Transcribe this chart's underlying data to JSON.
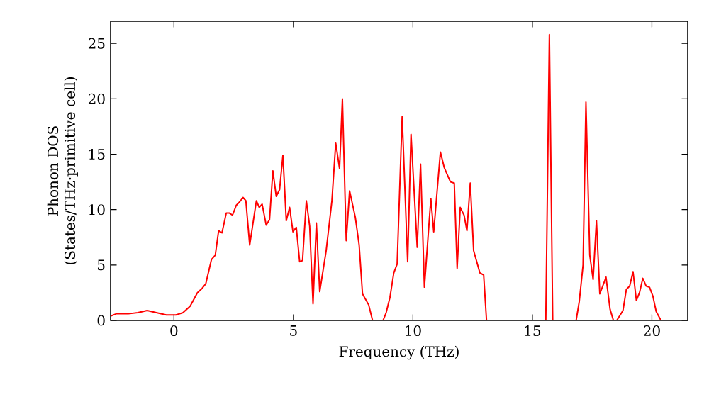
{
  "chart_data": {
    "type": "line",
    "xlabel": "Frequency (THz)",
    "ylabel": "Phonon DOS (States/THz·primitive cell)",
    "xlim": [
      -2.65,
      21.5
    ],
    "ylim": [
      0,
      27
    ],
    "xticks": [
      0,
      5,
      10,
      15,
      20
    ],
    "yticks": [
      0,
      5,
      10,
      15,
      20,
      25
    ],
    "marker": "none",
    "line_style": "solid",
    "series": [
      {
        "color": "#ff0000",
        "x": [
          -2.65,
          -2.41,
          -1.91,
          -1.51,
          -1.12,
          -0.72,
          -0.32,
          0.08,
          0.38,
          0.68,
          0.98,
          1.18,
          1.33,
          1.57,
          1.73,
          1.87,
          2.01,
          2.19,
          2.31,
          2.45,
          2.61,
          2.75,
          2.89,
          3.01,
          3.17,
          3.45,
          3.57,
          3.69,
          3.86,
          4.0,
          4.14,
          4.28,
          4.42,
          4.56,
          4.7,
          4.84,
          4.98,
          5.12,
          5.26,
          5.38,
          5.54,
          5.68,
          5.82,
          5.96,
          6.1,
          6.37,
          6.61,
          6.77,
          6.93,
          7.05,
          7.21,
          7.35,
          7.59,
          7.75,
          7.89,
          8.15,
          8.31,
          8.75,
          8.88,
          9.04,
          9.2,
          9.34,
          9.55,
          9.78,
          9.92,
          10.18,
          10.32,
          10.48,
          10.75,
          10.87,
          11.15,
          11.31,
          11.57,
          11.73,
          11.85,
          11.98,
          12.14,
          12.26,
          12.4,
          12.54,
          12.8,
          12.96,
          13.08,
          15.56,
          15.71,
          15.85,
          16.83,
          16.96,
          17.12,
          17.24,
          17.4,
          17.54,
          17.68,
          17.82,
          18.08,
          18.25,
          18.39,
          18.53,
          18.79,
          18.93,
          19.07,
          19.21,
          19.35,
          19.48,
          19.62,
          19.76,
          19.9,
          20.04,
          20.18,
          20.38,
          21.47
        ],
        "values": [
          0.4,
          0.6,
          0.6,
          0.7,
          0.9,
          0.7,
          0.5,
          0.5,
          0.7,
          1.3,
          2.5,
          2.9,
          3.3,
          5.5,
          5.9,
          8.1,
          7.9,
          9.7,
          9.7,
          9.5,
          10.4,
          10.7,
          11.1,
          10.8,
          6.8,
          10.8,
          10.2,
          10.5,
          8.6,
          9.1,
          13.5,
          11.2,
          11.8,
          14.9,
          9.0,
          10.2,
          8.0,
          8.4,
          5.3,
          5.4,
          10.8,
          8.5,
          1.5,
          8.8,
          2.6,
          6.3,
          10.8,
          16.0,
          13.7,
          20.0,
          7.2,
          11.7,
          9.3,
          6.8,
          2.4,
          1.4,
          0,
          0,
          0.7,
          2.1,
          4.3,
          5.1,
          18.4,
          5.3,
          16.8,
          6.6,
          14.1,
          3.0,
          11.0,
          8.0,
          15.2,
          13.8,
          12.5,
          12.4,
          4.7,
          10.2,
          9.5,
          8.1,
          12.4,
          6.3,
          4.3,
          4.1,
          0,
          0,
          25.8,
          0,
          0,
          1.7,
          5.0,
          19.7,
          5.9,
          3.7,
          9.0,
          2.4,
          3.9,
          1.0,
          0,
          0,
          0.9,
          2.8,
          3.1,
          4.4,
          1.8,
          2.5,
          3.8,
          3.1,
          3.0,
          2.2,
          0.8,
          0,
          0
        ]
      }
    ]
  }
}
